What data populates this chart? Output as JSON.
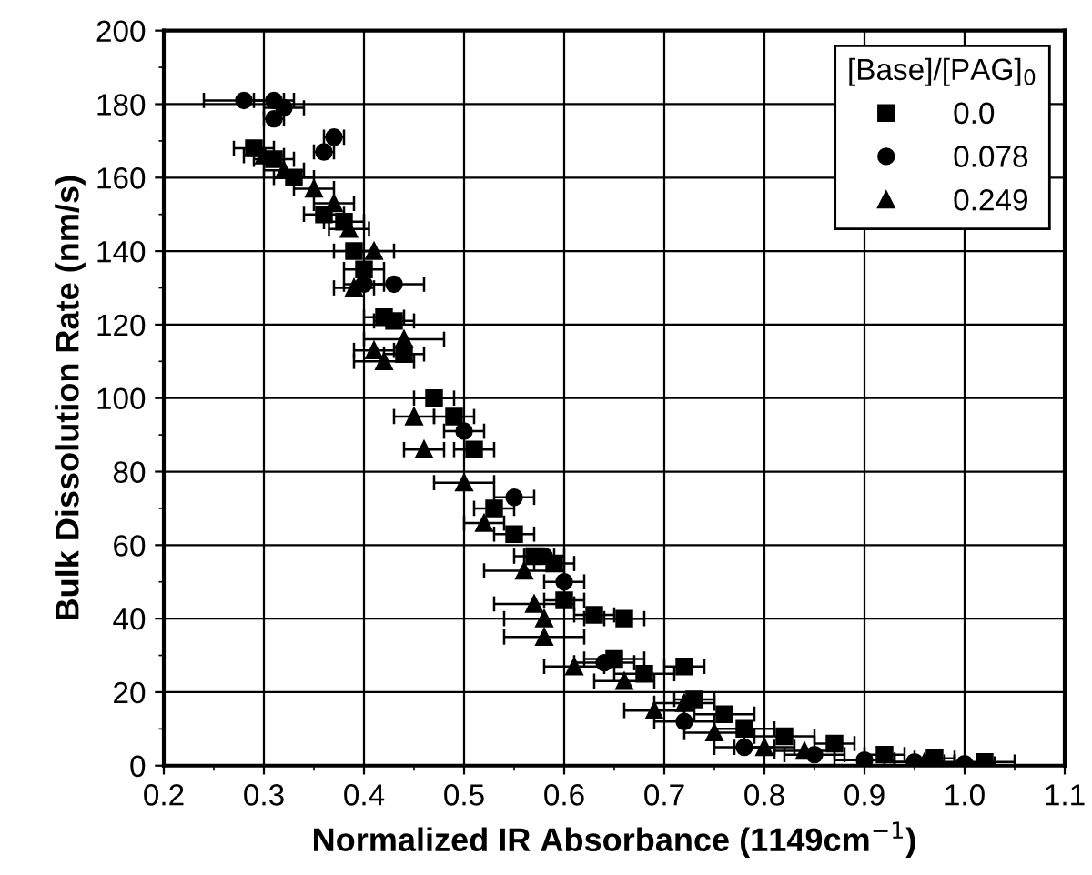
{
  "chart_data": {
    "type": "scatter",
    "xlabel": "Normalized IR Absorbance (1149cm$^{−1}$)",
    "ylabel": "Bulk Dissolution Rate (nm/s)",
    "legend_title": "[Base]/[PAG]$_{0}$",
    "legend": "top right",
    "grid": true,
    "xlim": [
      0.2,
      1.1
    ],
    "xticks": [
      0.2,
      0.3,
      0.4,
      0.5,
      0.6,
      0.7,
      0.8,
      0.9,
      {
        "value": 1.0,
        "label": "1.0"
      },
      1.1
    ],
    "ylim": [
      0,
      200
    ],
    "yticks": [
      0,
      20,
      40,
      60,
      80,
      100,
      120,
      140,
      160,
      180,
      200
    ],
    "series": [
      {
        "name": "0.0",
        "color": "#000000",
        "marker": "square",
        "x": [
          0.29,
          0.31,
          0.33,
          0.36,
          0.38,
          0.39,
          0.4,
          0.42,
          0.43,
          0.44,
          0.47,
          0.49,
          0.51,
          0.53,
          0.55,
          0.57,
          0.59,
          0.6,
          0.63,
          0.66,
          0.65,
          0.68,
          0.72,
          0.73,
          0.76,
          0.78,
          0.82,
          0.87,
          0.92,
          0.97,
          1.02
        ],
        "values": [
          168,
          165,
          160,
          150,
          148,
          140,
          135,
          122,
          121,
          112,
          100,
          95,
          86,
          70,
          63,
          57,
          55,
          45,
          41,
          40,
          29,
          25,
          27,
          18,
          14,
          10,
          8,
          6,
          3,
          2,
          1
        ],
        "xerrors": [
          0.02,
          0.02,
          0.02,
          0.02,
          0.02,
          0.02,
          0.02,
          0.02,
          0.02,
          0.02,
          0.02,
          0.02,
          0.02,
          0.02,
          0.02,
          0.02,
          0.02,
          0.02,
          0.02,
          0.02,
          0.03,
          0.03,
          0.02,
          0.02,
          0.03,
          0.03,
          0.03,
          0.02,
          0.02,
          0.02,
          0.03
        ]
      },
      {
        "name": "0.078",
        "color": "#000000",
        "marker": "circle",
        "x": [
          0.28,
          0.31,
          0.32,
          0.31,
          0.37,
          0.36,
          0.4,
          0.43,
          0.5,
          0.55,
          0.58,
          0.6,
          0.64,
          0.72,
          0.78,
          0.85,
          0.9,
          0.95,
          1.0
        ],
        "values": [
          181,
          181,
          179,
          176,
          171,
          167,
          131,
          131,
          91,
          73,
          57,
          50,
          28,
          12,
          5,
          3,
          1.5,
          1,
          0.5
        ],
        "xerrors": [
          0.04,
          0.02,
          0.02,
          0.01,
          0.01,
          0.01,
          0.02,
          0.03,
          0.02,
          0.02,
          0.02,
          0.02,
          0.03,
          0.03,
          0.03,
          0.03,
          0.03,
          0.03,
          0.03
        ]
      },
      {
        "name": "0.249",
        "color": "#000000",
        "marker": "triangle",
        "x": [
          0.3,
          0.32,
          0.35,
          0.37,
          0.385,
          0.39,
          0.41,
          0.41,
          0.44,
          0.42,
          0.45,
          0.46,
          0.5,
          0.52,
          0.56,
          0.57,
          0.58,
          0.58,
          0.61,
          0.66,
          0.69,
          0.72,
          0.75,
          0.8,
          0.84,
          0.96
        ],
        "values": [
          166,
          162,
          157,
          153,
          146,
          130,
          140,
          113,
          116,
          110,
          95,
          86,
          77,
          66,
          53,
          44,
          40,
          35,
          27,
          23,
          15,
          17,
          9,
          5,
          4,
          1
        ],
        "xerrors": [
          0.02,
          0.02,
          0.02,
          0.02,
          0.02,
          0.02,
          0.02,
          0.02,
          0.04,
          0.03,
          0.02,
          0.02,
          0.03,
          0.02,
          0.04,
          0.04,
          0.04,
          0.04,
          0.03,
          0.03,
          0.03,
          0.03,
          0.03,
          0.03,
          0.03,
          0.03
        ]
      }
    ]
  }
}
